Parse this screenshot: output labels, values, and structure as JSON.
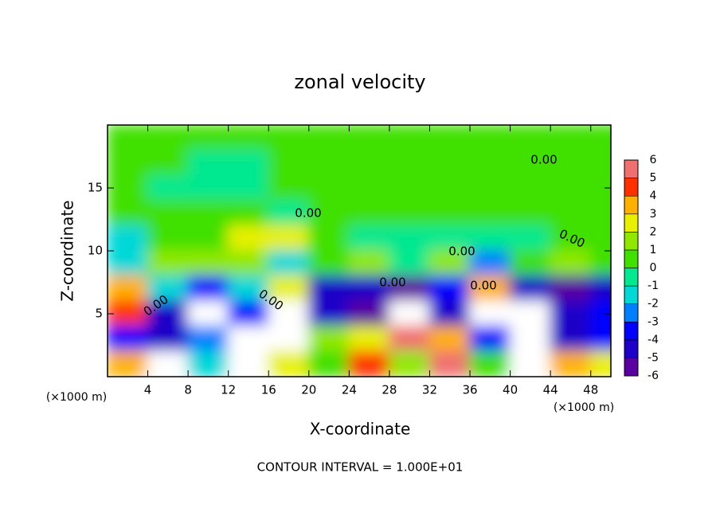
{
  "chart_data": {
    "type": "heatmap",
    "title": "zonal velocity",
    "x_label": "X-coordinate",
    "y_label": "Z-coordinate",
    "x_unit_labels": [
      "(×1000 m)",
      "(×1000 m)"
    ],
    "footer": "CONTOUR INTERVAL = 1.000E+01",
    "contour_labels": [
      "0.00",
      "0.00",
      "0.00",
      "0.00",
      "0.00",
      "0.00",
      "0.00",
      "0.00"
    ],
    "xlim": [
      0,
      50
    ],
    "ylim": [
      0,
      20
    ],
    "xticks": [
      4,
      8,
      12,
      16,
      20,
      24,
      28,
      32,
      36,
      40,
      44,
      48
    ],
    "yticks": [
      5,
      10,
      15
    ],
    "x": [
      2,
      6,
      10,
      14,
      18,
      22,
      26,
      30,
      34,
      38,
      42,
      46,
      50
    ],
    "y": [
      19,
      17,
      15,
      13,
      11,
      9,
      7,
      5,
      3,
      1
    ],
    "z": [
      [
        0.5,
        0.3,
        0.2,
        0.2,
        0.4,
        0.5,
        0.3,
        0.2,
        0.3,
        0.2,
        0.4,
        0.6,
        0.5
      ],
      [
        0.6,
        0.2,
        -0.3,
        -0.2,
        0.4,
        0.5,
        0.2,
        0.6,
        0.5,
        0.3,
        0.5,
        0.7,
        0.4
      ],
      [
        0.4,
        0.0,
        -0.4,
        -0.2,
        0.3,
        0.6,
        0.4,
        0.8,
        0.5,
        0.6,
        0.7,
        0.6,
        0.3
      ],
      [
        0.3,
        0.2,
        0.1,
        0.6,
        -0.5,
        0.2,
        0.4,
        0.3,
        0.2,
        0.1,
        0.3,
        0.3,
        0.2
      ],
      [
        -1.2,
        0.3,
        1.0,
        2.5,
        3.0,
        1.0,
        -0.2,
        -0.6,
        -0.5,
        -0.3,
        -0.4,
        0.2,
        0.4
      ],
      [
        -1.8,
        2.0,
        1.5,
        2.0,
        -1.5,
        0.8,
        1.2,
        -0.8,
        1.5,
        -2.5,
        0.5,
        1.8,
        0.5
      ],
      [
        3.5,
        -1.5,
        -3.5,
        -1.0,
        3.0,
        -4.5,
        -4.0,
        -5.0,
        -3.0,
        3.5,
        -4.0,
        -5.5,
        -4.5
      ],
      [
        5.0,
        -4.0,
        -8.0,
        -3.0,
        -7.0,
        -4.0,
        -5.5,
        -8.0,
        -4.0,
        -8.0,
        -8.0,
        -4.0,
        -3.5
      ],
      [
        -3.5,
        -4.0,
        -2.0,
        7.0,
        -8.0,
        2.0,
        3.0,
        6.0,
        4.0,
        -3.0,
        -8.0,
        -4.0,
        -3.0
      ],
      [
        4.0,
        7.0,
        -1.0,
        8.0,
        3.0,
        1.0,
        5.0,
        2.0,
        6.0,
        1.0,
        7.0,
        4.0,
        3.0
      ]
    ],
    "levels": [
      -6,
      -5,
      -4,
      -3,
      -2,
      -1,
      0,
      1,
      2,
      3,
      4,
      5,
      6
    ],
    "colors": [
      "#5a00a0",
      "#1e00c8",
      "#0000ff",
      "#0080ff",
      "#00d8d8",
      "#00e890",
      "#40e000",
      "#90e800",
      "#e8f000",
      "#ffb000",
      "#ff3000",
      "#f07070"
    ],
    "out_of_range_color": "#ffffff"
  }
}
